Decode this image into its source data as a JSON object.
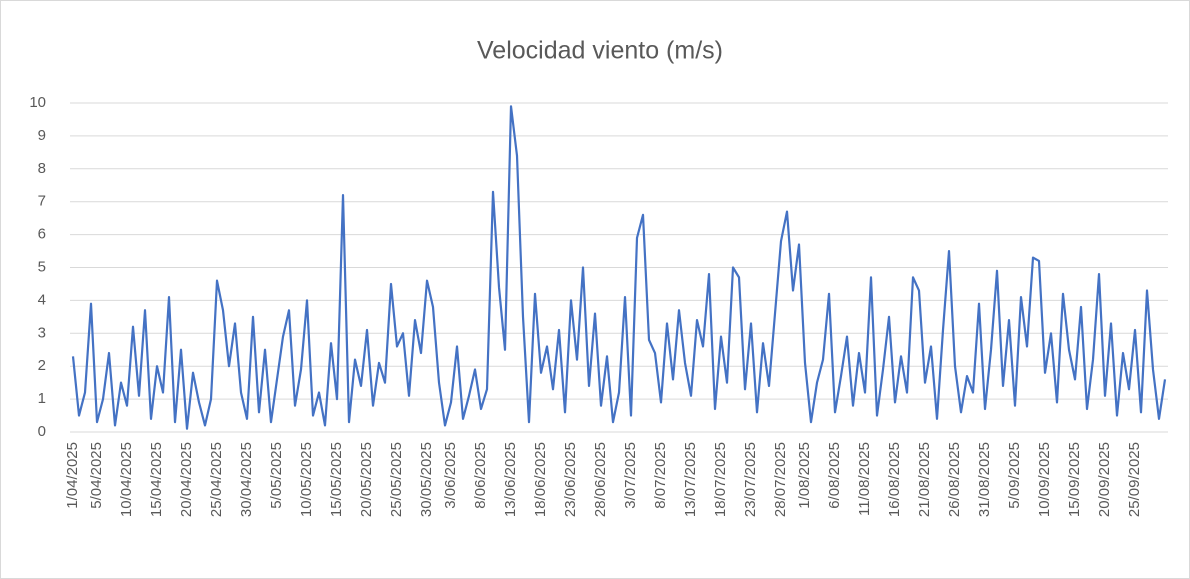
{
  "chart_data": {
    "type": "line",
    "title": "Velocidad viento (m/s)",
    "categories": [
      "1/04/2025",
      null,
      null,
      null,
      "5/04/2025",
      null,
      null,
      null,
      null,
      "10/04/2025",
      null,
      null,
      null,
      null,
      "15/04/2025",
      null,
      null,
      null,
      null,
      "20/04/2025",
      null,
      null,
      null,
      null,
      "25/04/2025",
      null,
      null,
      null,
      null,
      "30/04/2025",
      null,
      null,
      null,
      null,
      "5/05/2025",
      null,
      null,
      null,
      null,
      "10/05/2025",
      null,
      null,
      null,
      null,
      "15/05/2025",
      null,
      null,
      null,
      null,
      "20/05/2025",
      null,
      null,
      null,
      null,
      "25/05/2025",
      null,
      null,
      null,
      null,
      "30/05/2025",
      null,
      null,
      null,
      "3/06/2025",
      null,
      null,
      null,
      null,
      "8/06/2025",
      null,
      null,
      null,
      null,
      "13/06/2025",
      null,
      null,
      null,
      null,
      "18/06/2025",
      null,
      null,
      null,
      null,
      "23/06/2025",
      null,
      null,
      null,
      null,
      "28/06/2025",
      null,
      null,
      null,
      null,
      "3/07/2025",
      null,
      null,
      null,
      null,
      "8/07/2025",
      null,
      null,
      null,
      null,
      "13/07/2025",
      null,
      null,
      null,
      null,
      "18/07/2025",
      null,
      null,
      null,
      null,
      "23/07/2025",
      null,
      null,
      null,
      null,
      "28/07/2025",
      null,
      null,
      null,
      "1/08/2025",
      null,
      null,
      null,
      null,
      "6/08/2025",
      null,
      null,
      null,
      null,
      "11/08/2025",
      null,
      null,
      null,
      null,
      "16/08/2025",
      null,
      null,
      null,
      null,
      "21/08/2025",
      null,
      null,
      null,
      null,
      "26/08/2025",
      null,
      null,
      null,
      null,
      "31/08/2025",
      null,
      null,
      null,
      null,
      "5/09/2025",
      null,
      null,
      null,
      null,
      "10/09/2025",
      null,
      null,
      null,
      null,
      "15/09/2025",
      null,
      null,
      null,
      null,
      "20/09/2025",
      null,
      null,
      null,
      null,
      "25/09/2025",
      null,
      null,
      null,
      null,
      null
    ],
    "values": [
      2.3,
      0.5,
      1.2,
      3.9,
      0.3,
      1.0,
      2.4,
      0.2,
      1.5,
      0.8,
      3.2,
      1.1,
      3.7,
      0.4,
      2.0,
      1.2,
      4.1,
      0.3,
      2.5,
      0.1,
      1.8,
      0.9,
      0.2,
      1.0,
      4.6,
      3.7,
      2.0,
      3.3,
      1.2,
      0.4,
      3.5,
      0.6,
      2.5,
      0.3,
      1.6,
      2.9,
      3.7,
      0.8,
      1.9,
      4.0,
      0.5,
      1.2,
      0.2,
      2.7,
      1.0,
      7.2,
      0.3,
      2.2,
      1.4,
      3.1,
      0.8,
      2.1,
      1.5,
      4.5,
      2.6,
      3.0,
      1.1,
      3.4,
      2.4,
      4.6,
      3.8,
      1.5,
      0.2,
      0.9,
      2.6,
      0.4,
      1.1,
      1.9,
      0.7,
      1.3,
      7.3,
      4.4,
      2.5,
      9.9,
      8.4,
      3.5,
      0.3,
      4.2,
      1.8,
      2.6,
      1.3,
      3.1,
      0.6,
      4.0,
      2.2,
      5.0,
      1.4,
      3.6,
      0.8,
      2.3,
      0.3,
      1.2,
      4.1,
      0.5,
      5.9,
      6.6,
      2.8,
      2.4,
      0.9,
      3.3,
      1.6,
      3.7,
      2.1,
      1.1,
      3.4,
      2.6,
      4.8,
      0.7,
      2.9,
      1.5,
      5.0,
      4.7,
      1.3,
      3.3,
      0.6,
      2.7,
      1.4,
      3.6,
      5.8,
      6.7,
      4.3,
      5.7,
      2.1,
      0.3,
      1.5,
      2.2,
      4.2,
      0.6,
      1.7,
      2.9,
      0.8,
      2.4,
      1.2,
      4.7,
      0.5,
      1.9,
      3.5,
      0.9,
      2.3,
      1.2,
      4.7,
      4.3,
      1.5,
      2.6,
      0.4,
      3.1,
      5.5,
      2.0,
      0.6,
      1.7,
      1.2,
      3.9,
      0.7,
      2.5,
      4.9,
      1.4,
      3.4,
      0.8,
      4.1,
      2.6,
      5.3,
      5.2,
      1.8,
      3.0,
      0.9,
      4.2,
      2.5,
      1.6,
      3.8,
      0.7,
      2.2,
      4.8,
      1.1,
      3.3,
      0.5,
      2.4,
      1.3,
      3.1,
      0.6,
      4.3,
      1.9,
      0.4,
      1.6
    ],
    "color": "#4472c4",
    "ylim": [
      0,
      10
    ],
    "yticks": [
      0,
      1,
      2,
      3,
      4,
      5,
      6,
      7,
      8,
      9,
      10
    ],
    "grid": true
  }
}
